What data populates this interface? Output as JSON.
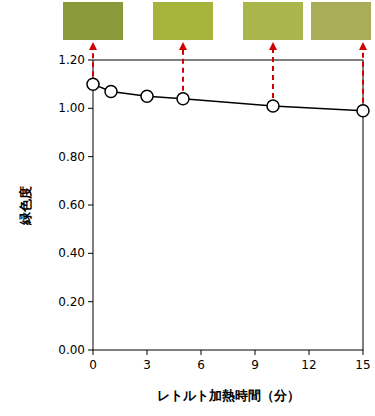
{
  "chart_data": {
    "type": "line",
    "x_label": "レトルト加熱時間（分）",
    "y_label": "緑色度",
    "x": [
      0,
      1,
      3,
      5,
      10,
      15
    ],
    "values": [
      1.1,
      1.07,
      1.05,
      1.04,
      1.01,
      0.99
    ],
    "color": "#000000",
    "marker": "circle",
    "line_style": "solid",
    "xlim": [
      0,
      15
    ],
    "xticks": [
      0,
      3,
      6,
      9,
      12,
      15
    ],
    "ylim": [
      0,
      1.2
    ],
    "yticks": [
      {
        "value": 0,
        "label": "0.00"
      },
      {
        "value": 0.2,
        "label": "0.20"
      },
      {
        "value": 0.4,
        "label": "0.40"
      },
      {
        "value": 0.6,
        "label": "0.60"
      },
      {
        "value": 0.8,
        "label": "0.80"
      },
      {
        "value": 1.0,
        "label": "1.00"
      },
      {
        "value": 1.2,
        "label": "1.20"
      }
    ],
    "grid": false,
    "swatches": {
      "x": [
        0,
        5,
        10,
        15
      ],
      "colors": [
        "#8a9a3b",
        "#a7b43b",
        "#aab54b",
        "#a9ad57"
      ]
    }
  }
}
